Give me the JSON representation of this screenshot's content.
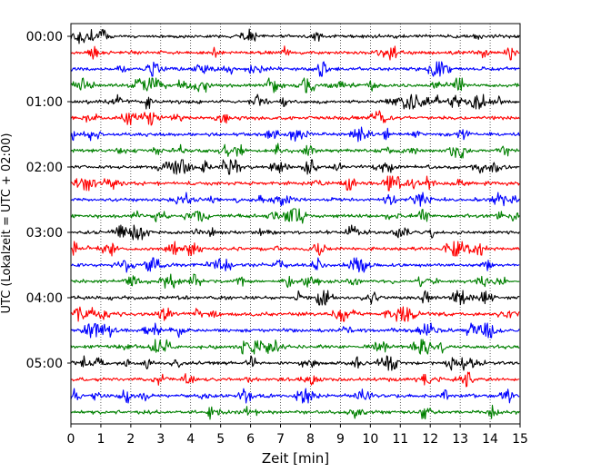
{
  "chart_data": {
    "type": "line",
    "chart_style": "helicorder / seismogram drum plot",
    "xlabel": "Zeit  [min]",
    "ylabel": "UTC (Lokalzeit = UTC + 02:00)",
    "xlim": [
      0,
      15
    ],
    "x_ticks": [
      "0",
      "1",
      "2",
      "3",
      "4",
      "5",
      "6",
      "7",
      "8",
      "9",
      "10",
      "11",
      "12",
      "13",
      "14",
      "15"
    ],
    "y_tick_labels": [
      "00:00",
      "01:00",
      "02:00",
      "03:00",
      "04:00",
      "05:00"
    ],
    "trace_interval_minutes": 15,
    "trace_count": 24,
    "trace_colors_cycle": [
      "#000000",
      "#ff0000",
      "#0000ff",
      "#008000"
    ],
    "vertical_grid": "dotted",
    "legend": "none"
  }
}
